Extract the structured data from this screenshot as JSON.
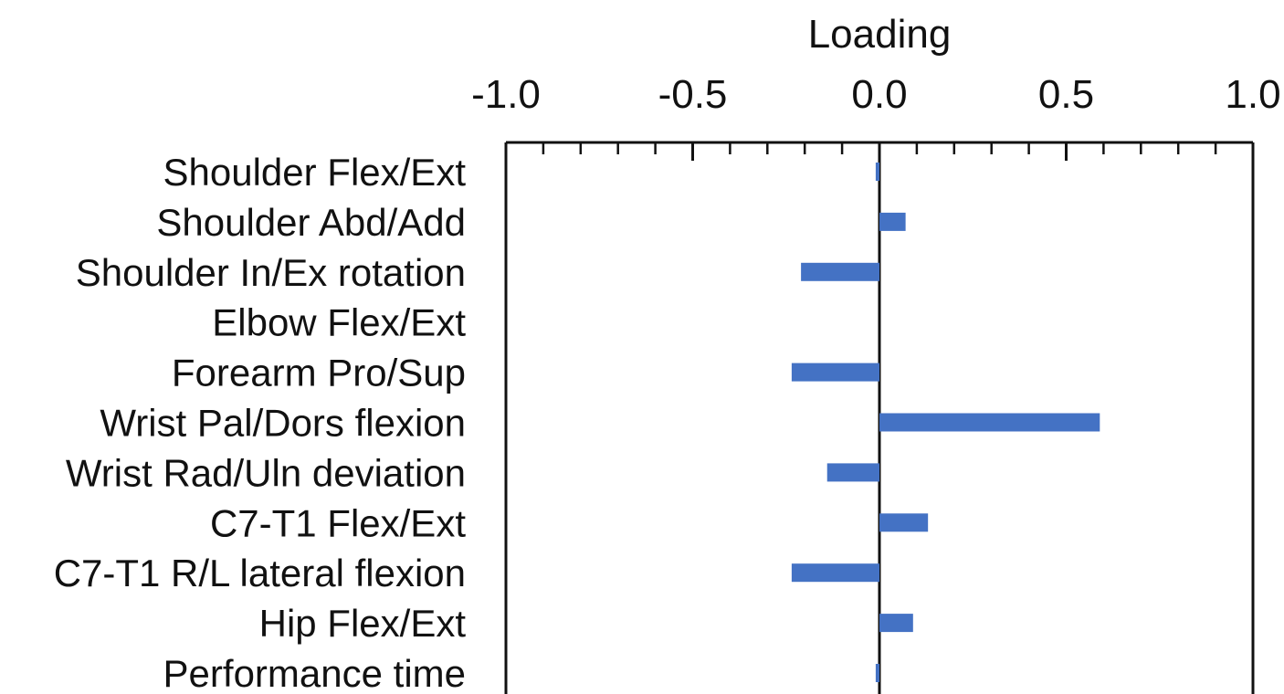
{
  "chart_data": {
    "type": "bar",
    "orientation": "horizontal",
    "xlabel": "Loading",
    "xlim": [
      -1.0,
      1.0
    ],
    "xticks": [
      "-1.0",
      "-0.5",
      "0.0",
      "0.5",
      "1.0"
    ],
    "xtick_values": [
      -1.0,
      -0.5,
      0.0,
      0.5,
      1.0
    ],
    "x_minor_step": 0.1,
    "grid": false,
    "bar_color": "#4472c4",
    "categories": [
      "Shoulder Flex/Ext",
      "Shoulder Abd/Add",
      "Shoulder In/Ex rotation",
      "Elbow Flex/Ext",
      "Forearm Pro/Sup",
      "Wrist Pal/Dors flexion",
      "Wrist Rad/Uln deviation",
      "C7-T1 Flex/Ext",
      "C7-T1 R/L lateral flexion",
      "Hip Flex/Ext",
      "Performance time"
    ],
    "values": [
      -0.01,
      0.07,
      -0.21,
      0.0,
      -0.235,
      0.59,
      -0.14,
      0.13,
      -0.235,
      0.09,
      -0.01
    ]
  }
}
